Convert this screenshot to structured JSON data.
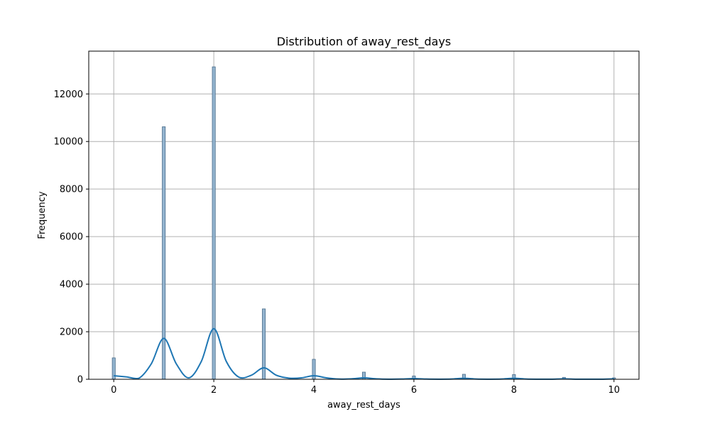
{
  "chart_data": {
    "type": "bar",
    "title": "Distribution of away_rest_days",
    "xlabel": "away_rest_days",
    "ylabel": "Frequency",
    "xlim": [
      -0.5,
      10.5
    ],
    "ylim": [
      0,
      13800
    ],
    "xticks": [
      "0",
      "2",
      "4",
      "6",
      "8",
      "10"
    ],
    "yticks": [
      "0",
      "2000",
      "4000",
      "6000",
      "8000",
      "10000",
      "12000"
    ],
    "grid": true,
    "legend": "none",
    "bins": {
      "x": [
        0,
        1,
        2,
        3,
        4,
        5,
        6,
        7,
        8,
        9,
        10
      ],
      "values": [
        900,
        10620,
        13140,
        2960,
        840,
        300,
        140,
        210,
        200,
        80,
        60
      ]
    },
    "kde": {
      "x": [
        0,
        0.25,
        0.5,
        0.75,
        1,
        1.25,
        1.5,
        1.75,
        2,
        2.25,
        2.5,
        2.75,
        3,
        3.25,
        3.5,
        3.75,
        4,
        4.25,
        4.5,
        4.75,
        5,
        5.25,
        5.5,
        5.75,
        6,
        6.25,
        6.5,
        6.75,
        7,
        7.25,
        7.5,
        7.75,
        8,
        8.25,
        8.5,
        8.75,
        9,
        9.25,
        9.5,
        9.75,
        10
      ],
      "y": [
        150,
        100,
        40,
        650,
        1720,
        650,
        60,
        750,
        2130,
        750,
        90,
        170,
        480,
        170,
        50,
        60,
        150,
        60,
        10,
        20,
        60,
        20,
        5,
        10,
        30,
        10,
        5,
        10,
        40,
        10,
        5,
        10,
        40,
        10,
        5,
        5,
        20,
        5,
        5,
        5,
        20
      ]
    },
    "colors": {
      "bar_fill": "#8db0cc",
      "bar_edge": "#4a6c8a",
      "kde_line": "#1f77b4",
      "grid": "#b0b0b0"
    }
  }
}
